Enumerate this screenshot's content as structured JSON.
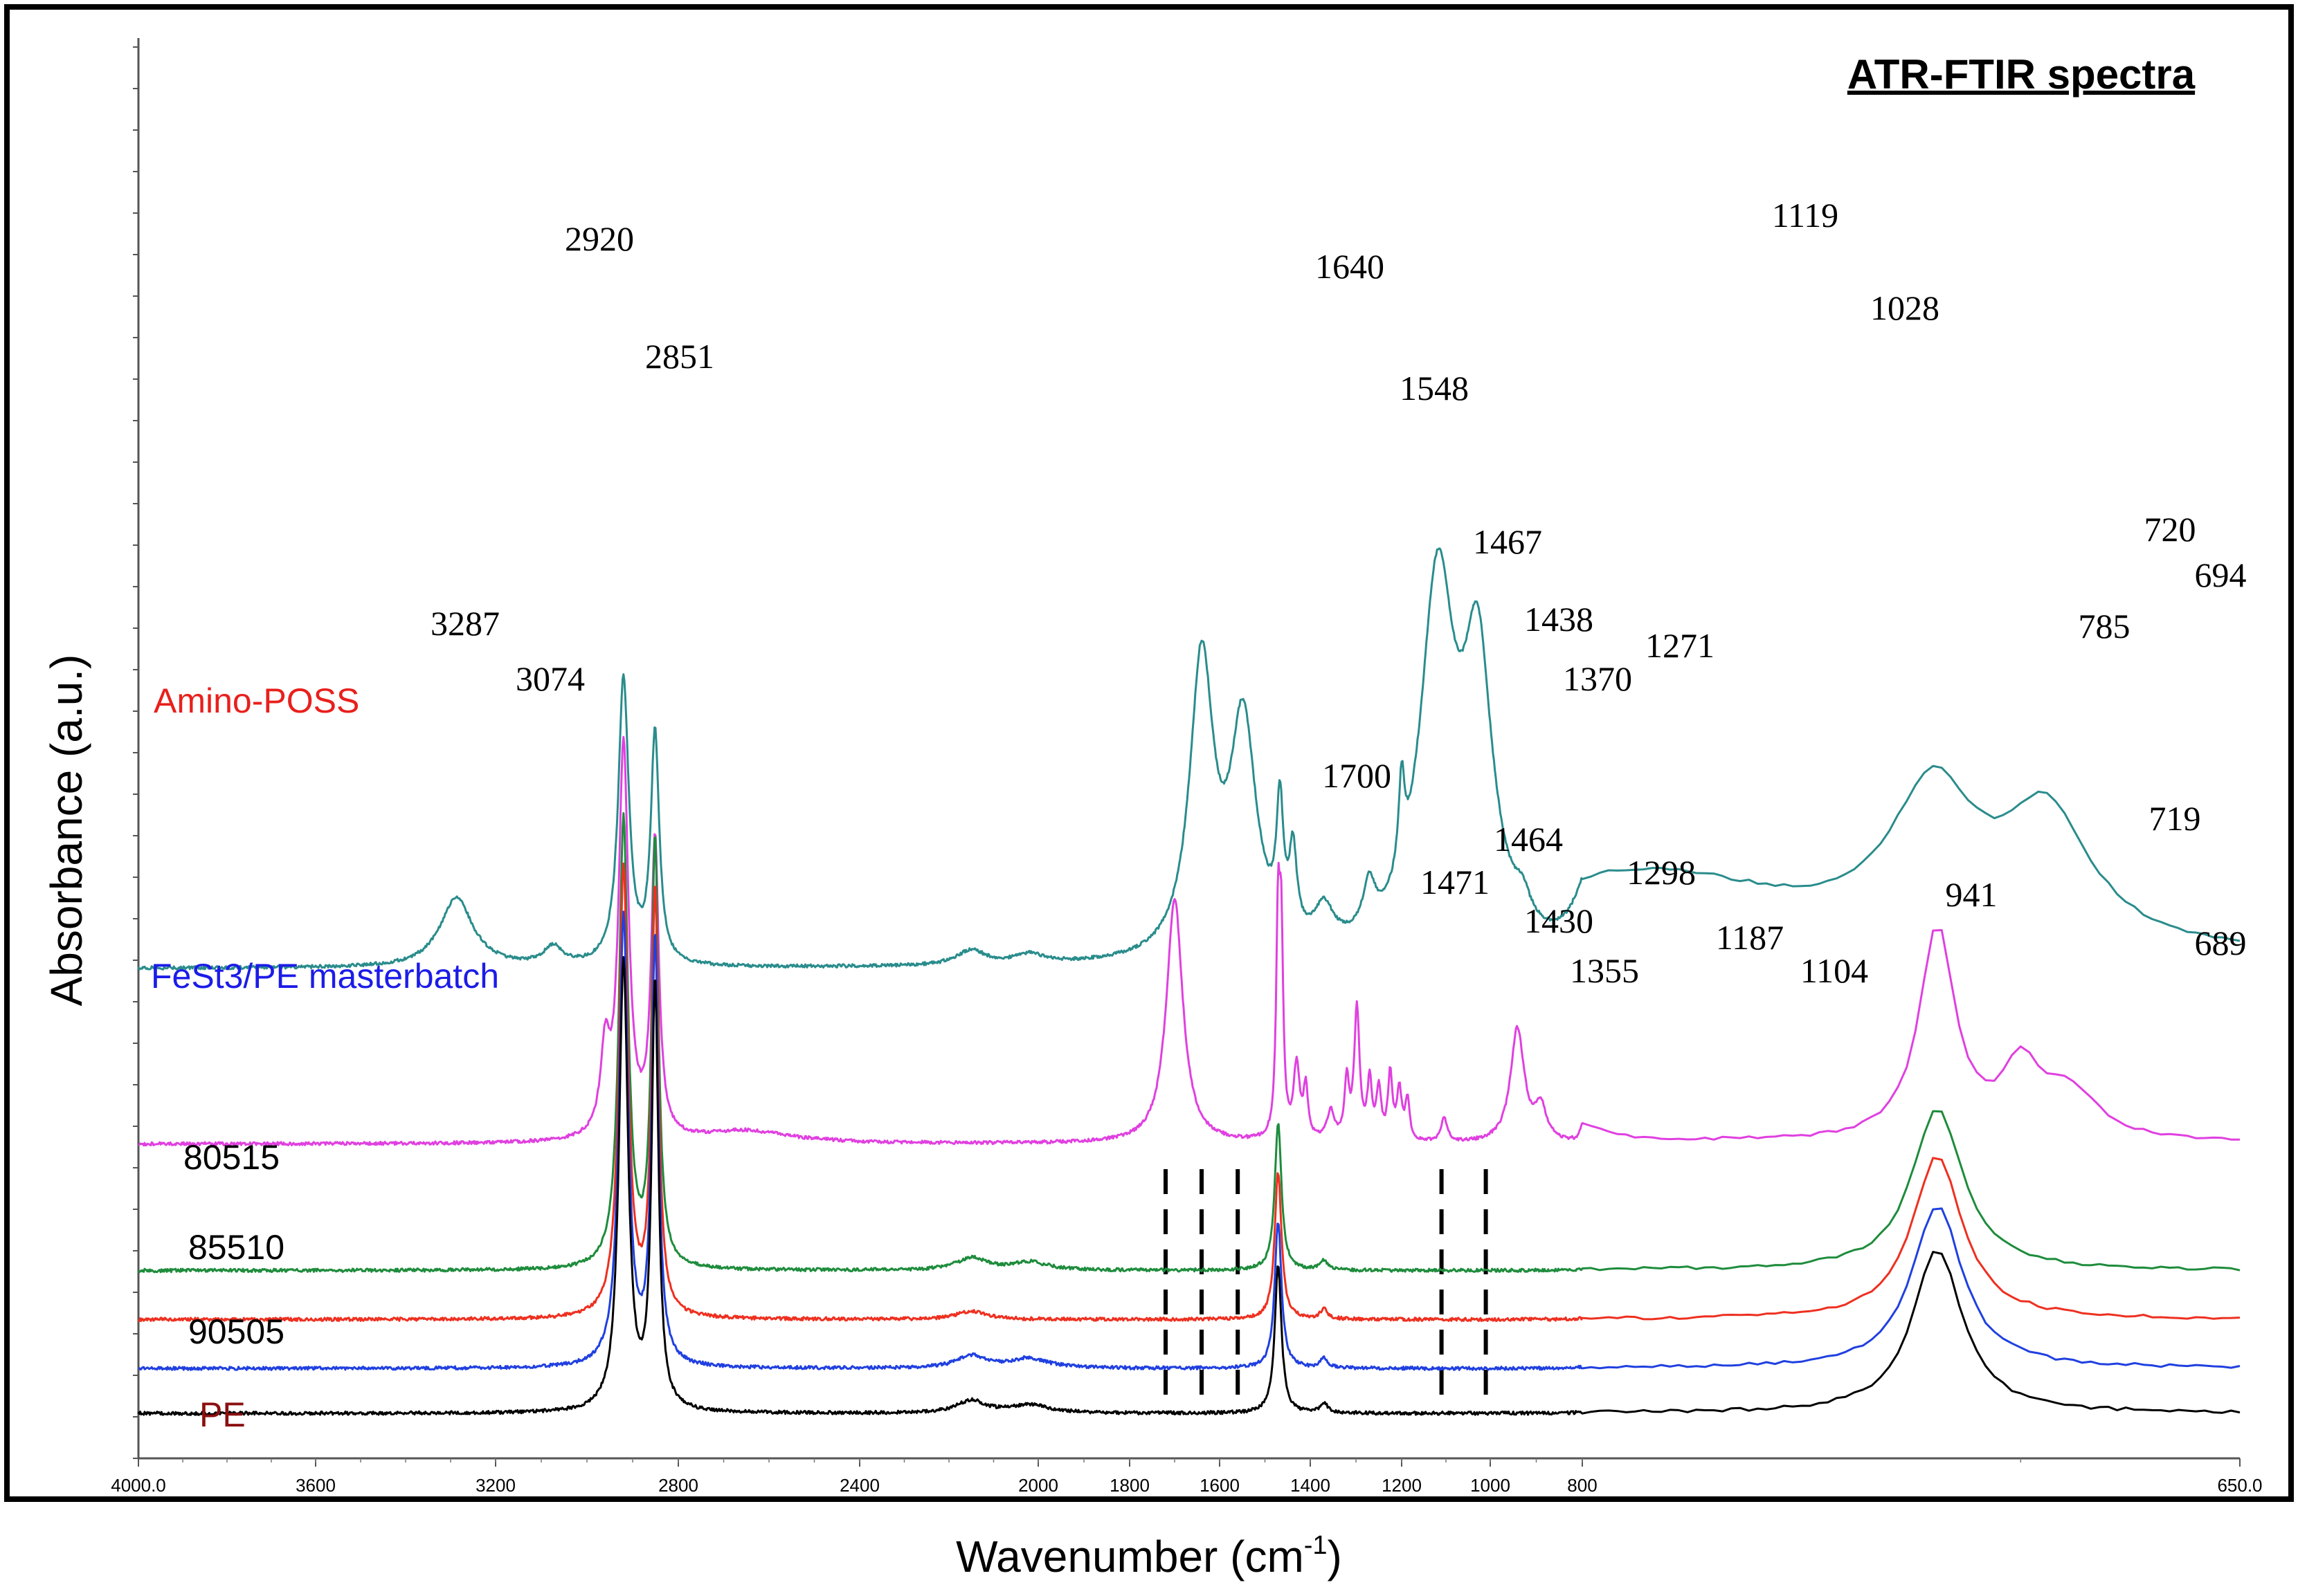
{
  "chart_data": {
    "type": "line",
    "title": "ATR-FTIR spectra",
    "xlabel": "Wavenumber (cm-1)",
    "xlabel_main": "Wavenumber (cm",
    "xlabel_sup": "-1",
    "xlabel_tail": ")",
    "ylabel": "Absorbance (a.u.)",
    "xlim": [
      4000,
      650
    ],
    "x_reversed": true,
    "y_units": "arbitrary (offset traces)",
    "x_ticks": [
      "4000.0",
      "3600",
      "3200",
      "2800",
      "2400",
      "2000",
      "1800",
      "1600",
      "1400",
      "1200",
      "1000",
      "800",
      "650.0"
    ],
    "grid": false,
    "series": [
      {
        "name": "Amino-POSS",
        "color": "#2a8c8c",
        "label_color": "#e8201c",
        "baseline": 6.0,
        "peaks": [
          [
            3287,
            0.85,
            45
          ],
          [
            3074,
            0.22,
            25
          ],
          [
            2920,
            3.5,
            14
          ],
          [
            2851,
            2.8,
            11
          ],
          [
            2150,
            0.18,
            40
          ],
          [
            2020,
            0.12,
            40
          ],
          [
            1640,
            3.6,
            32
          ],
          [
            1548,
            2.8,
            35
          ],
          [
            1467,
            1.5,
            9
          ],
          [
            1438,
            1.0,
            10
          ],
          [
            1370,
            0.45,
            25
          ],
          [
            1271,
            0.55,
            16
          ],
          [
            1200,
            1.1,
            8
          ],
          [
            1119,
            4.5,
            48
          ],
          [
            1028,
            3.4,
            40
          ],
          [
            930,
            0.3,
            20
          ],
          [
            785,
            0.95,
            40
          ],
          [
            720,
            1.8,
            12
          ],
          [
            694,
            1.55,
            12
          ]
        ],
        "annotations": [
          {
            "x": 3287,
            "label": "3287"
          },
          {
            "x": 3074,
            "label": "3074"
          },
          {
            "x": 2920,
            "label": "2920"
          },
          {
            "x": 2851,
            "label": "2851"
          },
          {
            "x": 1640,
            "label": "1640"
          },
          {
            "x": 1548,
            "label": "1548"
          },
          {
            "x": 1467,
            "label": "1467"
          },
          {
            "x": 1438,
            "label": "1438"
          },
          {
            "x": 1370,
            "label": "1370"
          },
          {
            "x": 1271,
            "label": "1271"
          },
          {
            "x": 1119,
            "label": "1119"
          },
          {
            "x": 1028,
            "label": "1028"
          },
          {
            "x": 785,
            "label": "785"
          },
          {
            "x": 720,
            "label": "720"
          },
          {
            "x": 694,
            "label": "694"
          }
        ]
      },
      {
        "name": "FeSt3/PE masterbatch",
        "color": "#e040e0",
        "label_color": "#1c1ce8",
        "baseline": 3.85,
        "peaks": [
          [
            2920,
            4.8,
            13
          ],
          [
            2851,
            3.6,
            10
          ],
          [
            2960,
            1.0,
            12
          ],
          [
            2650,
            0.15,
            120
          ],
          [
            1700,
            3.0,
            22
          ],
          [
            1471,
            2.5,
            5
          ],
          [
            1464,
            2.3,
            5
          ],
          [
            1430,
            0.9,
            8
          ],
          [
            1410,
            0.6,
            6
          ],
          [
            1355,
            0.35,
            10
          ],
          [
            1320,
            0.7,
            6
          ],
          [
            1298,
            1.6,
            7
          ],
          [
            1270,
            0.7,
            6
          ],
          [
            1250,
            0.6,
            6
          ],
          [
            1225,
            0.8,
            6
          ],
          [
            1205,
            0.6,
            6
          ],
          [
            1187,
            0.5,
            6
          ],
          [
            1104,
            0.3,
            8
          ],
          [
            941,
            1.4,
            18
          ],
          [
            890,
            0.4,
            15
          ],
          [
            800,
            0.2,
            6
          ],
          [
            719,
            2.6,
            5
          ],
          [
            700,
            0.8,
            5
          ],
          [
            689,
            0.6,
            8
          ]
        ],
        "annotations": [
          {
            "x": 1700,
            "label": "1700"
          },
          {
            "x": 1471,
            "label": "1471"
          },
          {
            "x": 1464,
            "label": "1464"
          },
          {
            "x": 1430,
            "label": "1430"
          },
          {
            "x": 1355,
            "label": "1355"
          },
          {
            "x": 1298,
            "label": "1298"
          },
          {
            "x": 1187,
            "label": "1187"
          },
          {
            "x": 1104,
            "label": "1104"
          },
          {
            "x": 941,
            "label": "941"
          },
          {
            "x": 719,
            "label": "719"
          },
          {
            "x": 689,
            "label": "689"
          }
        ]
      },
      {
        "name": "80515",
        "color": "#1e8c3c",
        "label_color": "#000000",
        "baseline": 2.3,
        "peaks": [
          [
            2920,
            5.5,
            12
          ],
          [
            2851,
            5.2,
            9
          ],
          [
            1471,
            1.8,
            9
          ],
          [
            1370,
            0.12,
            10
          ],
          [
            719,
            2.0,
            7
          ],
          [
            2150,
            0.15,
            40
          ],
          [
            2020,
            0.1,
            50
          ]
        ],
        "annotations": []
      },
      {
        "name": "85510",
        "color": "#ee3020",
        "label_color": "#000000",
        "baseline": 1.7,
        "peaks": [
          [
            2920,
            5.5,
            12
          ],
          [
            2851,
            5.2,
            9
          ],
          [
            1471,
            1.8,
            9
          ],
          [
            1370,
            0.12,
            10
          ],
          [
            719,
            2.0,
            7
          ],
          [
            2150,
            0.1,
            40
          ]
        ],
        "annotations": []
      },
      {
        "name": "90505",
        "color": "#2040e0",
        "label_color": "#000000",
        "baseline": 1.1,
        "peaks": [
          [
            2920,
            5.5,
            12
          ],
          [
            2851,
            5.2,
            9
          ],
          [
            1471,
            1.8,
            9
          ],
          [
            1370,
            0.12,
            10
          ],
          [
            719,
            2.0,
            7
          ],
          [
            2150,
            0.15,
            40
          ],
          [
            2020,
            0.12,
            50
          ]
        ],
        "annotations": []
      },
      {
        "name": "PE",
        "color": "#000000",
        "label_color": "#8b1010",
        "baseline": 0.55,
        "peaks": [
          [
            2920,
            5.5,
            12
          ],
          [
            2851,
            5.2,
            9
          ],
          [
            1471,
            1.8,
            9
          ],
          [
            1370,
            0.12,
            10
          ],
          [
            719,
            2.0,
            7
          ],
          [
            2150,
            0.15,
            40
          ],
          [
            2020,
            0.1,
            50
          ]
        ],
        "annotations": []
      }
    ],
    "reference_lines": [
      1720,
      1640,
      1560,
      1110,
      1010
    ]
  }
}
